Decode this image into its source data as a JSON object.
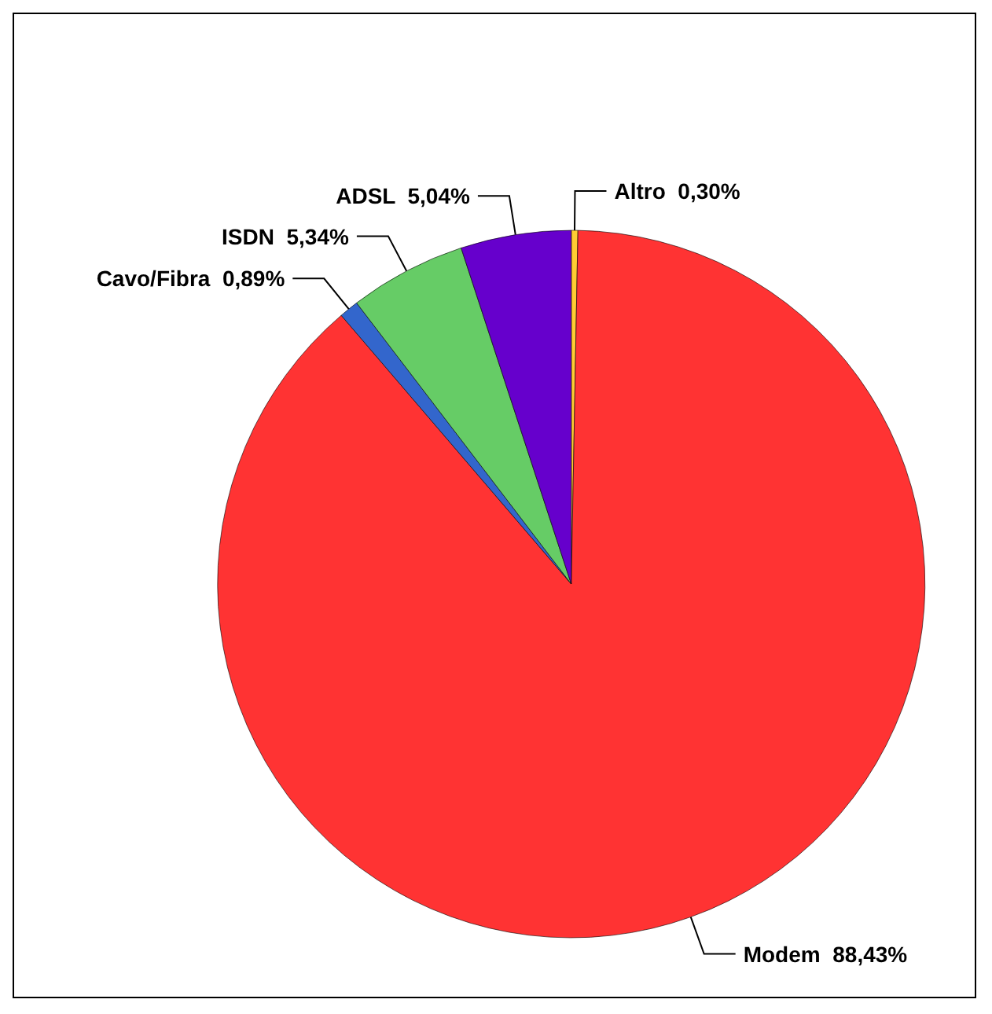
{
  "chart_data": {
    "type": "pie",
    "categories": [
      "Altro",
      "Modem",
      "Cavo/Fibra",
      "ISDN",
      "ADSL"
    ],
    "values": [
      0.3,
      88.43,
      0.89,
      5.34,
      5.04
    ],
    "value_labels": [
      "0,30%",
      "88,43%",
      "0,89%",
      "5,34%",
      "5,04%"
    ],
    "colors": [
      "#ffcc33",
      "#ff3333",
      "#3366cc",
      "#66cc66",
      "#6600cc"
    ],
    "legend": false
  }
}
